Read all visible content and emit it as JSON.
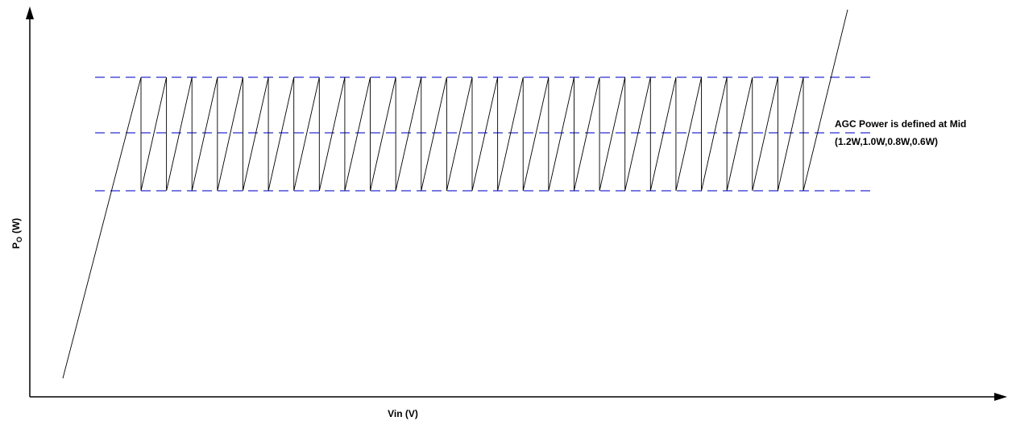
{
  "axes": {
    "y_label": {
      "main": "P",
      "sub": "O",
      "unit": "(W)"
    },
    "x_label": "Vin (V)"
  },
  "annotation": {
    "lines": [
      "AGC Power is defined at Mid",
      "(1.2W,1.0W,0.8W,0.6W)"
    ]
  }
}
